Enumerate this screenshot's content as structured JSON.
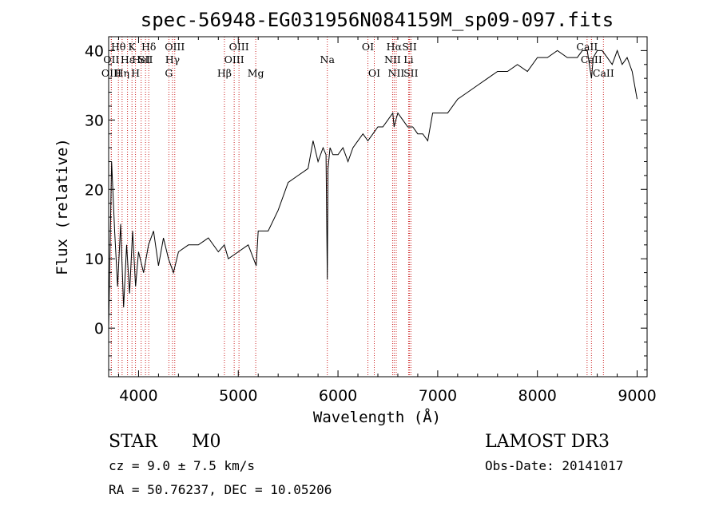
{
  "chart_data": {
    "type": "line",
    "title": "spec-56948-EG031956N084159M_sp09-097.fits",
    "xlabel": "Wavelength (Å)",
    "ylabel": "Flux (relative)",
    "xlim": [
      3700,
      9100
    ],
    "ylim": [
      -7,
      42
    ],
    "xticks": [
      4000,
      5000,
      6000,
      7000,
      8000,
      9000
    ],
    "xtick_labels": [
      "4000",
      "5000",
      "6000",
      "7000",
      "8000",
      "9000"
    ],
    "yticks": [
      0,
      10,
      20,
      30,
      40
    ],
    "ytick_labels": [
      "0",
      "10",
      "20",
      "30",
      "40"
    ],
    "grid": false,
    "series": [
      {
        "name": "flux",
        "color": "#000000",
        "x": [
          3700,
          3730,
          3760,
          3790,
          3820,
          3850,
          3880,
          3910,
          3940,
          3970,
          4000,
          4050,
          4100,
          4150,
          4200,
          4250,
          4300,
          4350,
          4400,
          4500,
          4600,
          4700,
          4800,
          4860,
          4900,
          5000,
          5100,
          5180,
          5200,
          5300,
          5400,
          5500,
          5600,
          5700,
          5750,
          5800,
          5850,
          5880,
          5893,
          5900,
          5920,
          5950,
          6000,
          6050,
          6100,
          6150,
          6200,
          6250,
          6300,
          6350,
          6400,
          6450,
          6500,
          6550,
          6563,
          6580,
          6600,
          6650,
          6700,
          6750,
          6800,
          6850,
          6900,
          6950,
          7000,
          7100,
          7200,
          7300,
          7400,
          7500,
          7600,
          7700,
          7800,
          7900,
          8000,
          8100,
          8200,
          8300,
          8400,
          8450,
          8500,
          8542,
          8560,
          8600,
          8650,
          8700,
          8750,
          8800,
          8850,
          8900,
          8950,
          9000
        ],
        "y": [
          0,
          24,
          14,
          6,
          15,
          3,
          12,
          5,
          14,
          6,
          11,
          8,
          12,
          14,
          9,
          13,
          10,
          8,
          11,
          12,
          12,
          13,
          11,
          12,
          10,
          11,
          12,
          9,
          14,
          14,
          17,
          21,
          22,
          23,
          27,
          24,
          26,
          25,
          7,
          23,
          26,
          25,
          25,
          26,
          24,
          26,
          27,
          28,
          27,
          28,
          29,
          29,
          30,
          31,
          29,
          30,
          31,
          30,
          29,
          29,
          28,
          28,
          27,
          31,
          31,
          31,
          33,
          34,
          35,
          36,
          37,
          37,
          38,
          37,
          39,
          39,
          40,
          39,
          39,
          40,
          40,
          36,
          39,
          40,
          40,
          39,
          38,
          40,
          38,
          39,
          37,
          33
        ]
      }
    ],
    "emission_lines": [
      {
        "label": "Hθ",
        "wavelength": 3798,
        "row": 1
      },
      {
        "label": "OII",
        "wavelength": 3727,
        "row": 2
      },
      {
        "label": "OIII",
        "wavelength": 3727,
        "row": 3
      },
      {
        "label": "Hε",
        "wavelength": 3889,
        "row": 2
      },
      {
        "label": "K",
        "wavelength": 3934,
        "row": 1
      },
      {
        "label": "Hη",
        "wavelength": 3835,
        "row": 3
      },
      {
        "label": "H",
        "wavelength": 3969,
        "row": 3
      },
      {
        "label": "HeI",
        "wavelength": 4026,
        "row": 2
      },
      {
        "label": "SII",
        "wavelength": 4070,
        "row": 2
      },
      {
        "label": "Hδ",
        "wavelength": 4102,
        "row": 1
      },
      {
        "label": "OIII",
        "wavelength": 4363,
        "row": 1
      },
      {
        "label": "Hγ",
        "wavelength": 4340,
        "row": 2
      },
      {
        "label": "G",
        "wavelength": 4304,
        "row": 3
      },
      {
        "label": "Hβ",
        "wavelength": 4861,
        "row": 3
      },
      {
        "label": "OIII",
        "wavelength": 4959,
        "row": 2
      },
      {
        "label": "OIII",
        "wavelength": 5007,
        "row": 1
      },
      {
        "label": "Mg",
        "wavelength": 5175,
        "row": 3
      },
      {
        "label": "Na",
        "wavelength": 5893,
        "row": 2
      },
      {
        "label": "OI",
        "wavelength": 6300,
        "row": 1
      },
      {
        "label": "OI",
        "wavelength": 6364,
        "row": 3
      },
      {
        "label": "Hα",
        "wavelength": 6563,
        "row": 1
      },
      {
        "label": "NII",
        "wavelength": 6548,
        "row": 2
      },
      {
        "label": "NII",
        "wavelength": 6584,
        "row": 3
      },
      {
        "label": "SII",
        "wavelength": 6717,
        "row": 1
      },
      {
        "label": "Li",
        "wavelength": 6708,
        "row": 2
      },
      {
        "label": "SII",
        "wavelength": 6731,
        "row": 3
      },
      {
        "label": "CaII",
        "wavelength": 8498,
        "row": 1
      },
      {
        "label": "CaII",
        "wavelength": 8542,
        "row": 2
      },
      {
        "label": "CaII",
        "wavelength": 8662,
        "row": 3
      }
    ],
    "line_marker_color": "#cc2222"
  },
  "info": {
    "class": "STAR",
    "subclass": "M0",
    "survey": "LAMOST DR3",
    "cz": "cz = 9.0 ± 7.5 km/s",
    "obs_date": "Obs-Date: 20141017",
    "radec": "RA =  50.76237, DEC =  10.05206"
  }
}
